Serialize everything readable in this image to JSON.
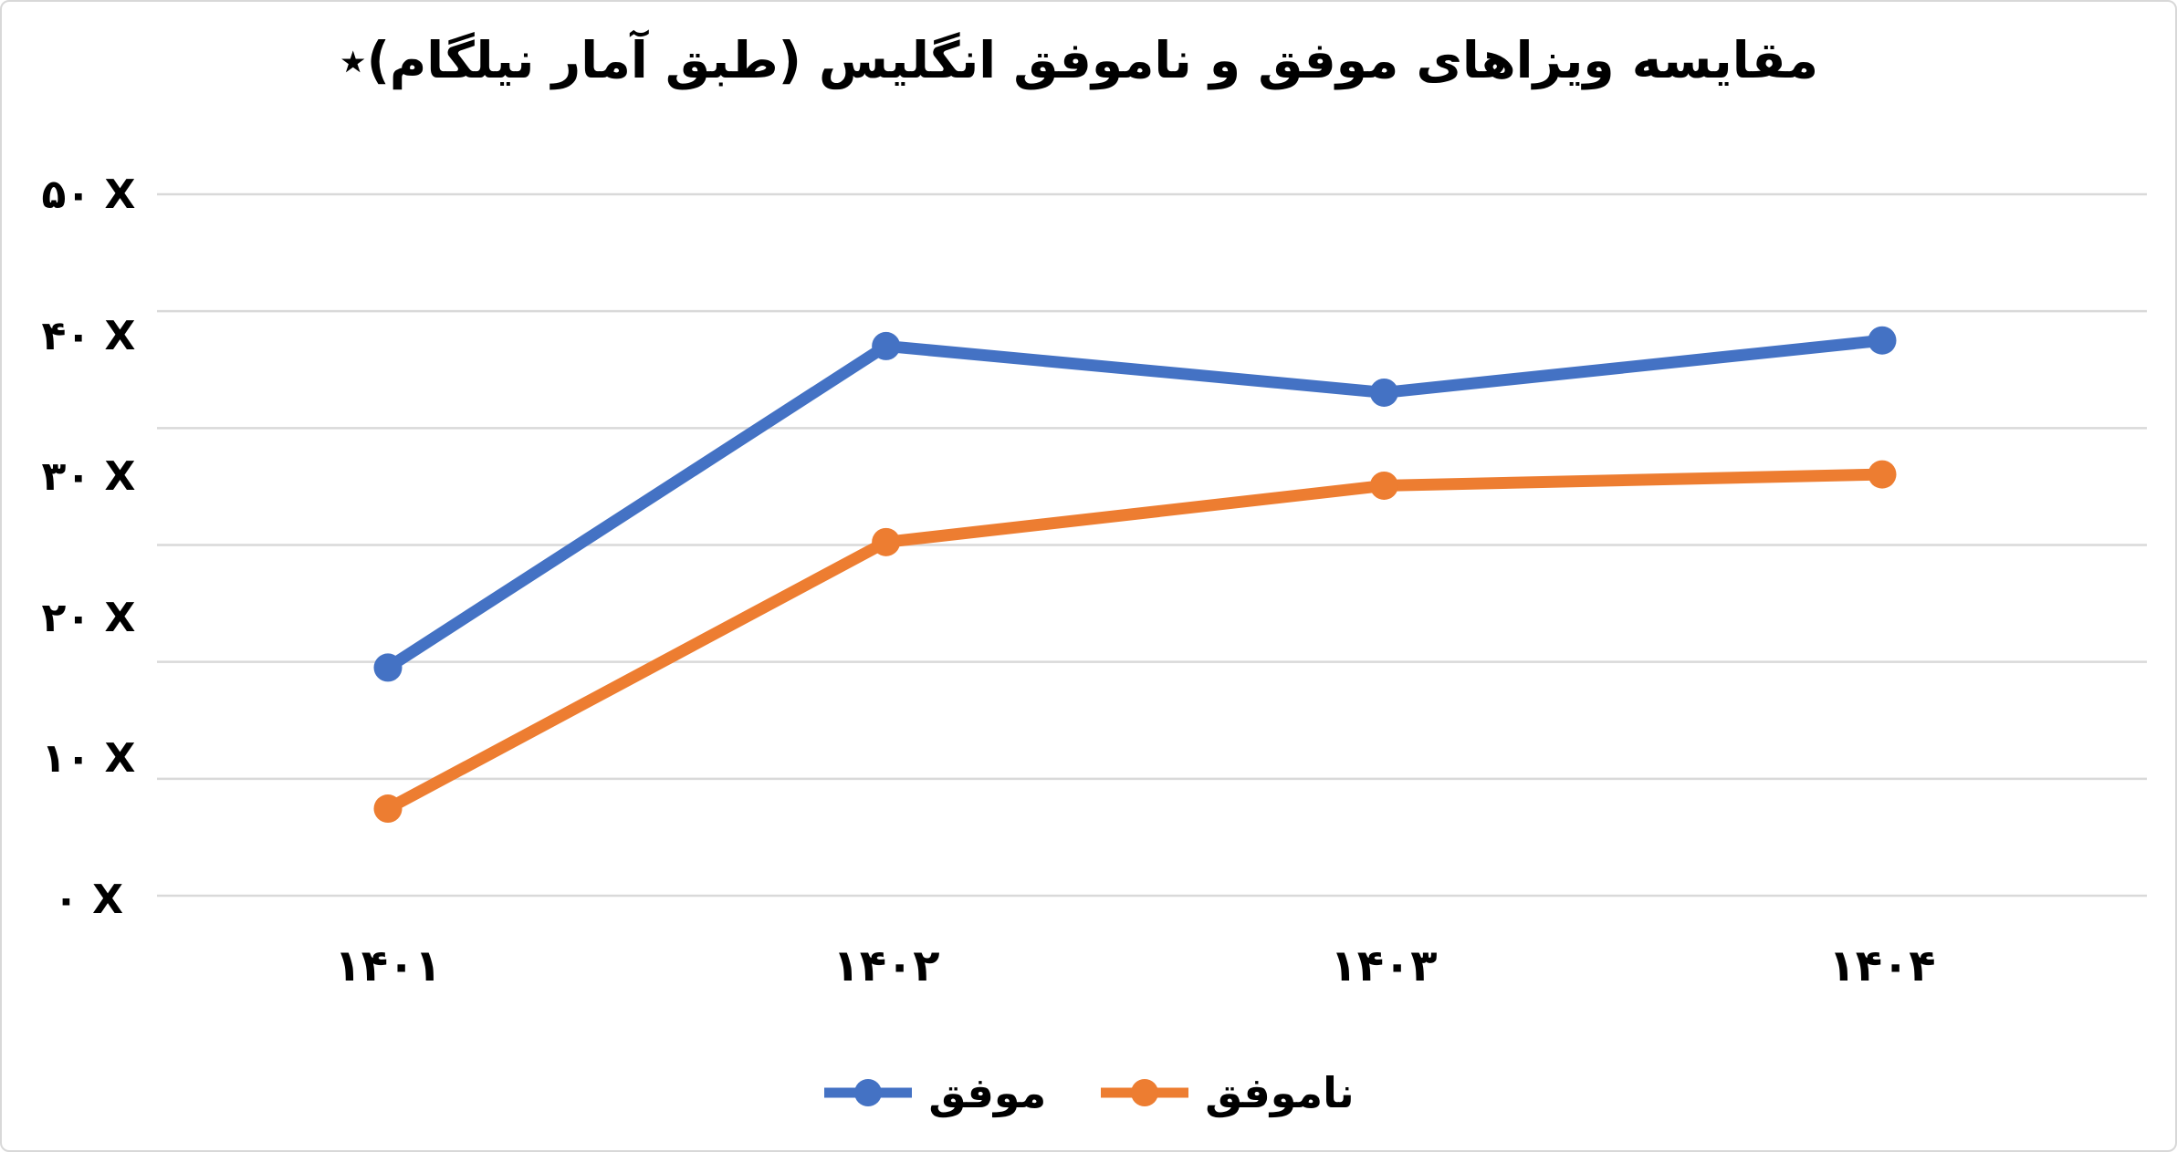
{
  "chart_data": {
    "type": "line",
    "title": "مقایسه ویزاهای موفق و ناموفق انگلیس (طبق آمار نیلگام)٭",
    "categories": [
      "۱۴۰۱",
      "۱۴۰۲",
      "۱۴۰۳",
      "۱۴۰۴"
    ],
    "series": [
      {
        "name": "موفق",
        "color": "#4472C4",
        "values": [
          16.5,
          39.3,
          36.0,
          39.7
        ]
      },
      {
        "name": "ناموفق",
        "color": "#ED7D31",
        "values": [
          6.5,
          25.4,
          29.4,
          30.2
        ]
      }
    ],
    "yticks": [
      "۵۰ X",
      "۴۰ X",
      "۳۰ X",
      "۲۰ X",
      "۱۰ X",
      "۰ X"
    ],
    "ylim": [
      0,
      50
    ],
    "xlabel": "",
    "ylabel": "",
    "grid": "horizontal",
    "gridline_count": 7,
    "gridline_color": "#D9D9D9",
    "legend_position": "bottom",
    "text_color": "#000000",
    "background_color": "#FFFFFF"
  }
}
